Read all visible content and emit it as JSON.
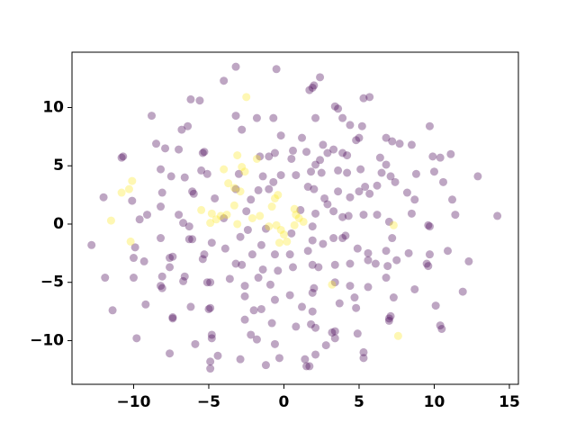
{
  "chart_data": {
    "type": "scatter",
    "xlim": [
      -14.1,
      15.6
    ],
    "ylim": [
      -13.75,
      14.75
    ],
    "xticks": [
      {
        "value": -10,
        "label": "−10"
      },
      {
        "value": -5,
        "label": "−5"
      },
      0,
      5,
      10,
      15
    ],
    "yticks": [
      {
        "value": -10,
        "label": "−10"
      },
      {
        "value": -5,
        "label": "−5"
      },
      0,
      5,
      10
    ],
    "series": [
      {
        "color": "#440154",
        "x": [
          -3.2,
          -0.5,
          -4,
          2.4,
          2,
          1.7,
          1.9,
          -6.2,
          -5.6,
          5.3,
          5.7,
          3.4,
          3.6,
          -8.8,
          -3.2,
          -1.8,
          -0.7,
          2.1,
          5.2,
          -6.4,
          -6.8,
          -2.8,
          3.9,
          4.4,
          9.7,
          -8.5,
          -7.9,
          -7.0,
          -5.3,
          -5.4,
          1.2,
          2.6,
          -0.2,
          4.8,
          5.0,
          6.8,
          7.2,
          7.7,
          8.5,
          0.6,
          1.5,
          3.3,
          3.9,
          2.9,
          4.2,
          6.4,
          9.9,
          10.4,
          11.1,
          -10.7,
          -10.8,
          -1.6,
          -1.0,
          -0.6,
          0.5,
          2.4,
          2.1,
          -8.2,
          -6.6,
          -7.5,
          -5.5,
          -5.1,
          -3.0,
          -1.4,
          -0.7,
          0.8,
          1.8,
          2.5,
          3.6,
          4.2,
          5.1,
          6.8,
          6.5,
          7.1,
          8.8,
          10.0,
          10.6,
          12.9,
          -0.2,
          -12.0,
          -10.1,
          -8.1,
          -6.1,
          -6.0,
          -4.6,
          -2.2,
          -1.7,
          -1.0,
          1.6,
          2.0,
          2.7,
          3.6,
          4.4,
          5.0,
          5.4,
          5.7,
          6.2,
          7.4,
          8.2,
          8.7,
          11.2,
          2.9,
          1.1,
          -3.2,
          -8.2,
          -7.0,
          -9.1,
          -9.6,
          -6.7,
          -6.3,
          -4.0,
          -2.4,
          -1.2,
          -2.5,
          2.1,
          3.3,
          3.9,
          4.3,
          5.3,
          6.2,
          7.0,
          8.5,
          9.6,
          9.7,
          11.4,
          14.2,
          0.5,
          1.9,
          -12.8,
          -9.9,
          -8.2,
          -6.3,
          -6.1,
          -4.8,
          -5.3,
          -3.9,
          -2.9,
          -2.1,
          -1.5,
          -0.6,
          0.4,
          1.6,
          1.9,
          2.6,
          3.3,
          3.9,
          4.1,
          4.9,
          5.6,
          6.8,
          7.2,
          9.7,
          10.9,
          -7.4,
          -7.6,
          -10,
          -9.3,
          -8.1,
          -7.6,
          -5.4,
          -3.2,
          -2.8,
          -1.4,
          -0.4,
          0.6,
          1.9,
          2.3,
          3.4,
          4.4,
          5.6,
          6.1,
          6.9,
          9.5,
          9.6,
          12.3,
          7.5,
          8.3,
          -11.9,
          -10.0,
          -8.2,
          -8.1,
          -6.6,
          -6.7,
          -4.9,
          -5.1,
          -3.6,
          -2.6,
          -1.7,
          -0.9,
          0.4,
          2.0,
          1.9,
          3.4,
          4.4,
          5.6,
          6.8,
          8.7,
          11.9,
          -2.6,
          -0.6,
          4.7,
          7.3,
          -11.4,
          -9.2,
          -7.4,
          -6.2,
          -4.9,
          -5.0,
          -2.6,
          -2.0,
          -1.5,
          1.2,
          1.9,
          3.7,
          4.8,
          7.0,
          7.1,
          10.1,
          10.4,
          10.5,
          -7.4,
          -0.8,
          1.8,
          2.1,
          3.2,
          3.4,
          -9.8,
          -7.6,
          -5.9,
          -4.8,
          -4.8,
          -2.2,
          -1.8,
          -0.6,
          0.8,
          -4.4,
          -4.9,
          -4.9,
          -2.9,
          -1.2,
          -0.3,
          1.4,
          1.5,
          1.7,
          2.1,
          5.3,
          5.3,
          2.8,
          3.4,
          4.9,
          7.0
        ],
        "values": [
          13.5,
          13.3,
          12.3,
          12.6,
          11.9,
          11.5,
          11.7,
          10.7,
          10.6,
          10.8,
          10.9,
          10.1,
          9.9,
          9.3,
          9.3,
          9.1,
          9.1,
          9.1,
          8.4,
          8.4,
          8.1,
          8.1,
          9.1,
          8.5,
          8.4,
          6.9,
          6.5,
          6.4,
          6.2,
          6.1,
          7.4,
          6.8,
          7.6,
          7.2,
          7.4,
          7.4,
          7.1,
          6.9,
          6.8,
          6.3,
          6.2,
          6.4,
          6.1,
          6.1,
          5.9,
          5.7,
          5.8,
          5.7,
          6.0,
          5.8,
          5.7,
          5.8,
          5.8,
          6.1,
          5.6,
          5.5,
          5.1,
          4.7,
          4.0,
          4.1,
          4.6,
          4.3,
          4.3,
          4.1,
          3.6,
          4.2,
          4.5,
          4.4,
          4.6,
          4.4,
          4.7,
          5.1,
          4.4,
          4.1,
          4.3,
          4.5,
          3.6,
          4.1,
          4.2,
          2.3,
          2.0,
          2.7,
          2.8,
          2.6,
          2.2,
          2.1,
          2.9,
          3.0,
          3.2,
          3.0,
          2.2,
          2.8,
          2.3,
          2.8,
          3.2,
          2.6,
          3.3,
          3.6,
          2.7,
          2.1,
          2.1,
          1.7,
          1.2,
          3.0,
          1.5,
          0.8,
          0.8,
          0.4,
          0.1,
          -0.2,
          0.5,
          -0.5,
          -0.4,
          1.1,
          0.9,
          1.1,
          0.6,
          0.7,
          0.8,
          0.8,
          0.2,
          0.9,
          -0.1,
          -0.2,
          0.8,
          0.7,
          -0.8,
          -0.2,
          -1.8,
          -2.0,
          -1.2,
          -1.3,
          -1.3,
          -1.6,
          -2.6,
          -2.1,
          -1.1,
          -2.6,
          -1.8,
          -2.6,
          -2.6,
          -2.3,
          -1.4,
          -1.7,
          -1.2,
          -1.2,
          -1.0,
          -2.1,
          -2.5,
          -2.3,
          -1.2,
          -2.6,
          -2.3,
          -2.8,
          -2.9,
          -2.9,
          -3.2,
          -4.5,
          -3.7,
          -3.0,
          -3.4,
          -3.5,
          -3.9,
          -4.0,
          -3.7,
          -3.5,
          -3.7,
          -3.5,
          -3.4,
          -3.1,
          -3.4,
          -3.6,
          -3.4,
          -3.6,
          -3.2,
          -3.1,
          -2.5,
          -4.6,
          -4.6,
          -5.3,
          -5.5,
          -4.5,
          -4.9,
          -5.0,
          -5.0,
          -4.7,
          -5.3,
          -4.6,
          -5.2,
          -6.1,
          -5.5,
          -5.9,
          -5.0,
          -5.3,
          -5.4,
          -4.6,
          -5.6,
          -5.8,
          -6.2,
          -6.5,
          -6.3,
          -6.3,
          -7.4,
          -6.9,
          -8.0,
          -7.1,
          -7.2,
          -7.3,
          -8.2,
          -7.4,
          -7.3,
          -7.1,
          -7.5,
          -6.8,
          -7.2,
          -8.3,
          -7.9,
          -7.0,
          -8.7,
          -9.0,
          -8.1,
          -8.5,
          -8.6,
          -8.9,
          -9.3,
          -9.2,
          -9.8,
          -11.1,
          -10.3,
          -9.5,
          -9.8,
          -9.5,
          -9.9,
          -10.3,
          -8.8,
          -11.3,
          -12.4,
          -11.8,
          -11.6,
          -12.1,
          -11.5,
          -11.6,
          -12.2,
          -12.2,
          -11.2,
          -11.0,
          -11.5,
          -10.4,
          -9.8,
          -9.4,
          -8.1
        ]
      },
      {
        "color": "#fde725",
        "x": [
          -2.5,
          -3.1,
          -2.8,
          -2.6,
          -4,
          -3.7,
          -3.3,
          -2.9,
          -10.1,
          -10.3,
          -10.8,
          -11.5,
          -10.2,
          -5.5,
          -4.8,
          -4.5,
          -4.9,
          -4.2,
          -3.8,
          -3.3,
          -3.1,
          -2.1,
          -1.6,
          -0.8,
          -0.6,
          -0.4,
          -0.5,
          -0.2,
          0,
          0.2,
          -0.3,
          0.7,
          0.8,
          1.0,
          1.3,
          0.7,
          -1.0,
          -1.8,
          3.2,
          7.3,
          7.6
        ],
        "values": [
          10.9,
          5.9,
          4.9,
          4.5,
          4.7,
          3.5,
          3.1,
          2.8,
          3.7,
          3,
          2.7,
          0.3,
          -1.5,
          1.2,
          0.9,
          0.4,
          0.1,
          0.7,
          0.8,
          1.6,
          0,
          0.5,
          0.7,
          1.5,
          2.2,
          2.5,
          -0.1,
          -0.5,
          -0.9,
          -1.5,
          -1.6,
          1.3,
          0.8,
          0.5,
          0.2,
          -0.1,
          -0.2,
          5.6,
          -5.2,
          -0.1,
          -9.6
        ]
      }
    ]
  }
}
